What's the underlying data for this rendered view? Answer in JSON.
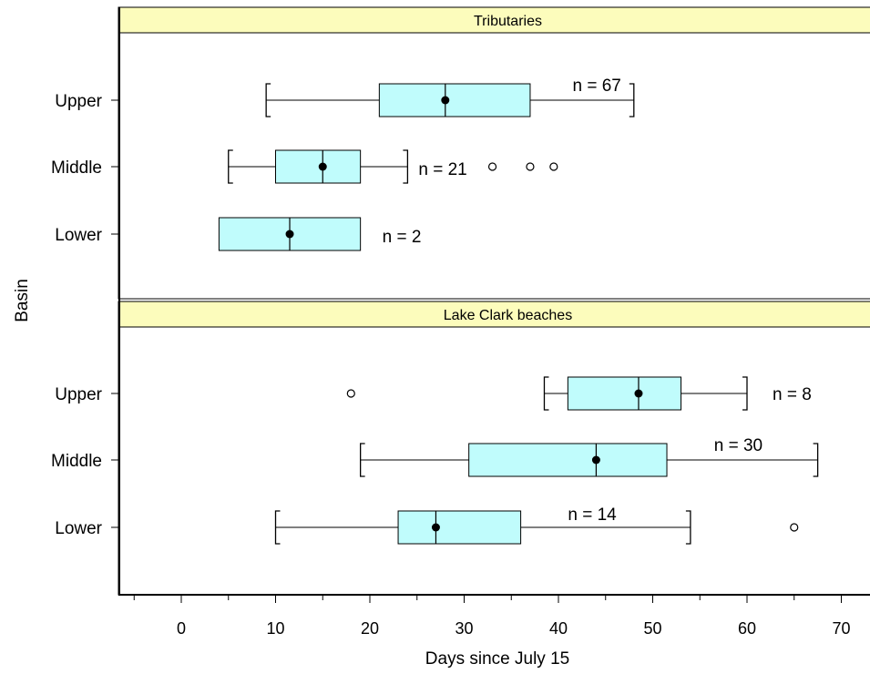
{
  "chart_data": {
    "type": "boxplot",
    "xlabel": "Days since July 15",
    "ylabel": "Basin",
    "xlim": [
      -5,
      73
    ],
    "xticks": [
      0,
      10,
      20,
      30,
      40,
      50,
      60,
      70
    ],
    "categories": [
      "Upper",
      "Middle",
      "Lower"
    ],
    "colors": {
      "box_fill": "#c0fcfc",
      "strip_fill": "#fcfcbc",
      "line": "#000000"
    },
    "panels": [
      {
        "title": "Tributaries",
        "boxes": [
          {
            "category": "Upper",
            "whisker_low": 9,
            "q1": 21,
            "median": 28,
            "q3": 37,
            "whisker_high": 48,
            "mean": 28,
            "outliers": [],
            "n_label": "n = 67"
          },
          {
            "category": "Middle",
            "whisker_low": 5,
            "q1": 10,
            "median": 15,
            "q3": 19,
            "whisker_high": 24,
            "mean": 15,
            "outliers": [
              33,
              37,
              39.5
            ],
            "n_label": "n = 21"
          },
          {
            "category": "Lower",
            "whisker_low": 4,
            "q1": 4,
            "median": 11.5,
            "q3": 19,
            "whisker_high": 19,
            "mean": 11.5,
            "outliers": [],
            "n_label": "n = 2"
          }
        ]
      },
      {
        "title": "Lake Clark beaches",
        "boxes": [
          {
            "category": "Upper",
            "whisker_low": 38.5,
            "q1": 41,
            "median": 48.5,
            "q3": 53,
            "whisker_high": 60,
            "mean": 48.5,
            "outliers": [
              18
            ],
            "n_label": "n = 8"
          },
          {
            "category": "Middle",
            "whisker_low": 19,
            "q1": 30.5,
            "median": 44,
            "q3": 51.5,
            "whisker_high": 67.5,
            "mean": 44,
            "outliers": [],
            "n_label": "n = 30"
          },
          {
            "category": "Lower",
            "whisker_low": 10,
            "q1": 23,
            "median": 27,
            "q3": 36,
            "whisker_high": 54,
            "mean": 27,
            "outliers": [
              65
            ],
            "n_label": "n = 14"
          }
        ]
      }
    ]
  }
}
